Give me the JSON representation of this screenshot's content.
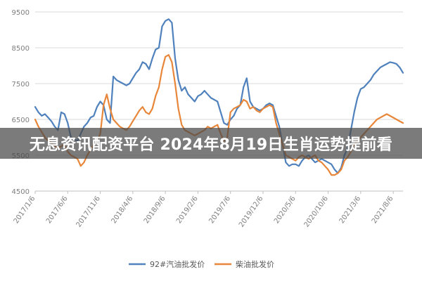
{
  "overlay": {
    "text": "无息资讯配资平台 2024年8月19日生肖运势提前看"
  },
  "colors": {
    "series_gasoline": "#4f81bd",
    "series_diesel": "#e8863a",
    "grid": "#d9d9d9",
    "axis_text": "#7f7f7f"
  },
  "chart_data": {
    "type": "line",
    "ylim": [
      4500,
      9500
    ],
    "yticks": [
      4500,
      5500,
      6500,
      7500,
      8500,
      9500
    ],
    "xticklabels": [
      "2017/1/6",
      "2017/6/6",
      "2017/11/6",
      "2018/4/6",
      "2018/9/6",
      "2019/2/6",
      "2019/7/6",
      "2019/12/6",
      "2020/5/6",
      "2020/10/6",
      "2021/3/6",
      "2021/8/6"
    ],
    "grid": true,
    "legend_position": "bottom",
    "x_months": [
      0,
      0.5,
      1,
      1.5,
      2,
      2.5,
      3,
      3.5,
      4,
      4.5,
      5,
      5.5,
      6,
      6.5,
      7,
      7.5,
      8,
      8.5,
      9,
      9.5,
      10,
      10.5,
      11,
      11.5,
      12,
      12.5,
      13,
      13.5,
      14,
      14.5,
      15,
      15.5,
      16,
      16.5,
      17,
      17.5,
      18,
      18.5,
      19,
      19.5,
      20,
      20.5,
      21,
      21.5,
      22,
      22.5,
      23,
      23.5,
      24,
      24.5,
      25,
      25.5,
      26,
      26.5,
      27,
      27.5,
      28,
      28.5,
      29,
      29.5,
      30,
      30.5,
      31,
      31.5,
      32,
      32.5,
      33,
      33.5,
      34,
      34.5,
      35,
      35.5,
      36,
      36.5,
      37,
      37.5,
      38,
      38.5,
      39,
      39.5,
      40,
      40.5,
      41,
      41.5,
      42,
      42.5,
      43,
      43.5,
      44,
      44.5,
      45,
      45.5,
      46,
      46.5,
      47,
      47.5,
      48,
      48.5,
      49,
      49.5,
      50,
      50.5,
      51,
      51.5,
      52,
      52.5,
      53,
      53.5,
      54,
      54.5,
      55,
      55.5,
      56,
      56.5
    ],
    "series": [
      {
        "name": "92#汽油批发价",
        "color": "#4f81bd",
        "values": [
          6850,
          6700,
          6600,
          6650,
          6550,
          6450,
          6300,
          6200,
          6700,
          6650,
          6400,
          6000,
          5950,
          5900,
          6100,
          6300,
          6400,
          6550,
          6600,
          6850,
          7000,
          6900,
          6500,
          6400,
          7700,
          7600,
          7550,
          7500,
          7450,
          7500,
          7650,
          7800,
          7900,
          8100,
          8050,
          7900,
          8200,
          8450,
          8500,
          9100,
          9250,
          9300,
          9200,
          8200,
          7600,
          7300,
          7400,
          7200,
          7100,
          7000,
          7150,
          7200,
          7300,
          7200,
          7100,
          7050,
          7000,
          6700,
          6400,
          6350,
          6500,
          6600,
          6800,
          6900,
          7400,
          7650,
          7000,
          6850,
          6800,
          6750,
          6800,
          6900,
          6950,
          6900,
          6600,
          6300,
          5800,
          5300,
          5200,
          5250,
          5250,
          5200,
          5350,
          5450,
          5500,
          5400,
          5300,
          5350,
          5400,
          5350,
          5300,
          5250,
          5100,
          5000,
          5150,
          5500,
          5700,
          6200,
          6700,
          7100,
          7350,
          7400,
          7500,
          7600,
          7750,
          7850,
          7950,
          8000,
          8050,
          8100,
          8080,
          8050,
          7950,
          7800
        ]
      },
      {
        "name": "柴油批发价",
        "color": "#e8863a",
        "values": [
          6500,
          6300,
          6150,
          6000,
          5900,
          5850,
          5750,
          5700,
          5750,
          5800,
          5600,
          5500,
          5450,
          5400,
          5200,
          5300,
          5500,
          5650,
          5800,
          5900,
          6100,
          6900,
          7200,
          6800,
          6500,
          6400,
          6300,
          6250,
          6200,
          6300,
          6450,
          6600,
          6750,
          6850,
          6700,
          6650,
          6800,
          7150,
          7400,
          7900,
          8250,
          8300,
          8100,
          7500,
          6800,
          6350,
          6200,
          6150,
          6100,
          6050,
          6100,
          6150,
          6200,
          6300,
          6250,
          6300,
          6350,
          6100,
          5900,
          6000,
          6700,
          6800,
          6850,
          6900,
          7050,
          7000,
          6800,
          6850,
          6750,
          6700,
          6800,
          6850,
          6900,
          6850,
          6400,
          6100,
          5800,
          5500,
          5450,
          5400,
          5350,
          5450,
          5500,
          5450,
          5400,
          5450,
          5500,
          5350,
          5300,
          5200,
          5100,
          4950,
          4950,
          5000,
          5100,
          5350,
          5450,
          5600,
          5800,
          5900,
          6000,
          6100,
          6200,
          6300,
          6400,
          6500,
          6550,
          6600,
          6650,
          6600,
          6550,
          6500,
          6450,
          6400
        ]
      }
    ]
  }
}
